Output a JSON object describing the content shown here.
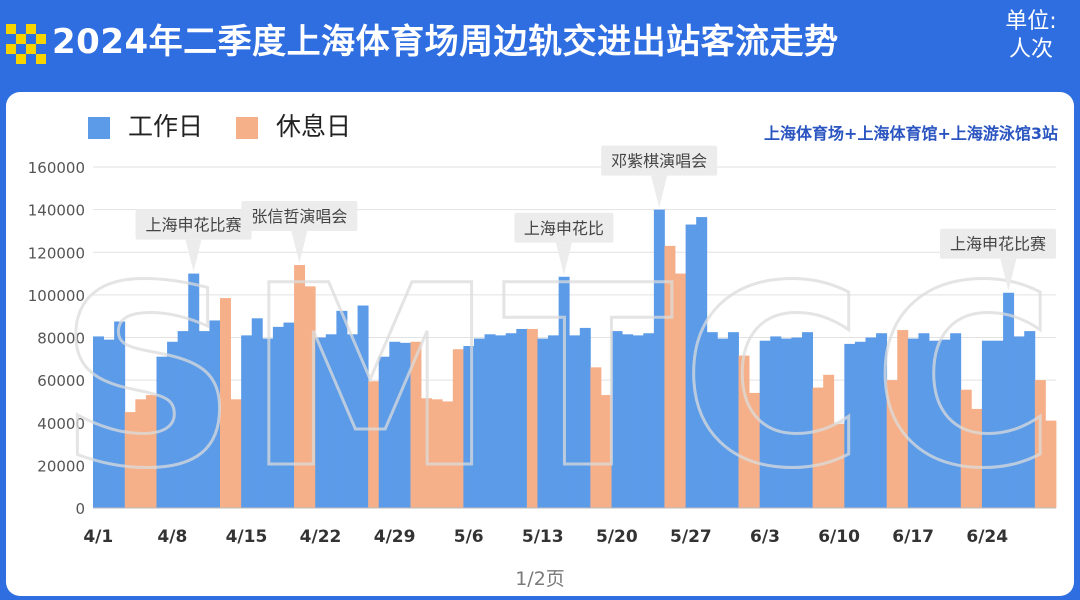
{
  "header": {
    "title": "2024年二季度上海体育场周边轨交进出站客流走势",
    "unit_line1": "单位:",
    "unit_line2": "人次"
  },
  "subtitle": "上海体育场+上海体育馆+上海游泳馆3站",
  "watermark": "SMTCC",
  "pagination": "1/2页",
  "colors": {
    "header_bg": "#2f6ee0",
    "workday": "#5b9be8",
    "holiday": "#f5b08a",
    "logo_yellow": "#f7d300",
    "subtitle": "#2a55c0"
  },
  "chart_data": {
    "type": "bar",
    "title": "2024年二季度上海体育场周边轨交进出站客流走势",
    "xlabel": "",
    "ylabel": "",
    "ylim": [
      0,
      160000
    ],
    "yticks": [
      0,
      20000,
      40000,
      60000,
      80000,
      100000,
      120000,
      140000,
      160000
    ],
    "xtick_labels": [
      "4/1",
      "4/8",
      "4/15",
      "4/22",
      "4/29",
      "5/6",
      "5/13",
      "5/20",
      "5/27",
      "6/3",
      "6/10",
      "6/17",
      "6/24"
    ],
    "start_date": "4/1",
    "series": [
      {
        "name": "工作日",
        "key": "work"
      },
      {
        "name": "休息日",
        "key": "rest"
      }
    ],
    "legend_position": "top-left",
    "grid": true,
    "days": [
      {
        "date": "4/1",
        "value": 80500,
        "type": "work"
      },
      {
        "date": "4/2",
        "value": 79000,
        "type": "work"
      },
      {
        "date": "4/3",
        "value": 87500,
        "type": "work"
      },
      {
        "date": "4/4",
        "value": 45000,
        "type": "rest"
      },
      {
        "date": "4/5",
        "value": 51000,
        "type": "rest"
      },
      {
        "date": "4/6",
        "value": 53000,
        "type": "rest"
      },
      {
        "date": "4/7",
        "value": 71000,
        "type": "work"
      },
      {
        "date": "4/8",
        "value": 78000,
        "type": "work"
      },
      {
        "date": "4/9",
        "value": 83000,
        "type": "work"
      },
      {
        "date": "4/10",
        "value": 110000,
        "type": "work"
      },
      {
        "date": "4/11",
        "value": 83000,
        "type": "work"
      },
      {
        "date": "4/12",
        "value": 88000,
        "type": "work"
      },
      {
        "date": "4/13",
        "value": 98500,
        "type": "rest"
      },
      {
        "date": "4/14",
        "value": 51000,
        "type": "rest"
      },
      {
        "date": "4/15",
        "value": 81000,
        "type": "work"
      },
      {
        "date": "4/16",
        "value": 89000,
        "type": "work"
      },
      {
        "date": "4/17",
        "value": 79500,
        "type": "work"
      },
      {
        "date": "4/18",
        "value": 85000,
        "type": "work"
      },
      {
        "date": "4/19",
        "value": 87000,
        "type": "work"
      },
      {
        "date": "4/20",
        "value": 114000,
        "type": "rest"
      },
      {
        "date": "4/21",
        "value": 104000,
        "type": "rest"
      },
      {
        "date": "4/22",
        "value": 80000,
        "type": "work"
      },
      {
        "date": "4/23",
        "value": 81500,
        "type": "work"
      },
      {
        "date": "4/24",
        "value": 92500,
        "type": "work"
      },
      {
        "date": "4/25",
        "value": 81500,
        "type": "work"
      },
      {
        "date": "4/26",
        "value": 95000,
        "type": "work"
      },
      {
        "date": "4/27",
        "value": 59500,
        "type": "rest"
      },
      {
        "date": "4/28",
        "value": 71000,
        "type": "work"
      },
      {
        "date": "4/29",
        "value": 78000,
        "type": "work"
      },
      {
        "date": "4/30",
        "value": 77500,
        "type": "work"
      },
      {
        "date": "5/1",
        "value": 78000,
        "type": "rest"
      },
      {
        "date": "5/2",
        "value": 51500,
        "type": "rest"
      },
      {
        "date": "5/3",
        "value": 51000,
        "type": "rest"
      },
      {
        "date": "5/4",
        "value": 50000,
        "type": "rest"
      },
      {
        "date": "5/5",
        "value": 74500,
        "type": "rest"
      },
      {
        "date": "5/6",
        "value": 76000,
        "type": "work"
      },
      {
        "date": "5/7",
        "value": 79500,
        "type": "work"
      },
      {
        "date": "5/8",
        "value": 81500,
        "type": "work"
      },
      {
        "date": "5/9",
        "value": 81000,
        "type": "work"
      },
      {
        "date": "5/10",
        "value": 82000,
        "type": "work"
      },
      {
        "date": "5/11",
        "value": 84000,
        "type": "work"
      },
      {
        "date": "5/12",
        "value": 84000,
        "type": "rest"
      },
      {
        "date": "5/13",
        "value": 79500,
        "type": "work"
      },
      {
        "date": "5/14",
        "value": 81000,
        "type": "work"
      },
      {
        "date": "5/15",
        "value": 108500,
        "type": "work"
      },
      {
        "date": "5/16",
        "value": 81000,
        "type": "work"
      },
      {
        "date": "5/17",
        "value": 84500,
        "type": "work"
      },
      {
        "date": "5/18",
        "value": 66000,
        "type": "rest"
      },
      {
        "date": "5/19",
        "value": 53000,
        "type": "rest"
      },
      {
        "date": "5/20",
        "value": 83000,
        "type": "work"
      },
      {
        "date": "5/21",
        "value": 81500,
        "type": "work"
      },
      {
        "date": "5/22",
        "value": 81000,
        "type": "work"
      },
      {
        "date": "5/23",
        "value": 82000,
        "type": "work"
      },
      {
        "date": "5/24",
        "value": 140000,
        "type": "work"
      },
      {
        "date": "5/25",
        "value": 123000,
        "type": "rest"
      },
      {
        "date": "5/26",
        "value": 110000,
        "type": "rest"
      },
      {
        "date": "5/27",
        "value": 133000,
        "type": "work"
      },
      {
        "date": "5/28",
        "value": 136500,
        "type": "work"
      },
      {
        "date": "5/29",
        "value": 82500,
        "type": "work"
      },
      {
        "date": "5/30",
        "value": 79500,
        "type": "work"
      },
      {
        "date": "5/31",
        "value": 82500,
        "type": "work"
      },
      {
        "date": "6/1",
        "value": 71500,
        "type": "rest"
      },
      {
        "date": "6/2",
        "value": 54000,
        "type": "rest"
      },
      {
        "date": "6/3",
        "value": 78500,
        "type": "work"
      },
      {
        "date": "6/4",
        "value": 80500,
        "type": "work"
      },
      {
        "date": "6/5",
        "value": 79500,
        "type": "work"
      },
      {
        "date": "6/6",
        "value": 80000,
        "type": "work"
      },
      {
        "date": "6/7",
        "value": 82500,
        "type": "work"
      },
      {
        "date": "6/8",
        "value": 56500,
        "type": "rest"
      },
      {
        "date": "6/9",
        "value": 62500,
        "type": "rest"
      },
      {
        "date": "6/10",
        "value": 39500,
        "type": "rest"
      },
      {
        "date": "6/11",
        "value": 77000,
        "type": "work"
      },
      {
        "date": "6/12",
        "value": 78000,
        "type": "work"
      },
      {
        "date": "6/13",
        "value": 80000,
        "type": "work"
      },
      {
        "date": "6/14",
        "value": 82000,
        "type": "work"
      },
      {
        "date": "6/15",
        "value": 60000,
        "type": "rest"
      },
      {
        "date": "6/16",
        "value": 83500,
        "type": "rest"
      },
      {
        "date": "6/17",
        "value": 79500,
        "type": "work"
      },
      {
        "date": "6/18",
        "value": 82000,
        "type": "work"
      },
      {
        "date": "6/19",
        "value": 78500,
        "type": "work"
      },
      {
        "date": "6/20",
        "value": 79000,
        "type": "work"
      },
      {
        "date": "6/21",
        "value": 82000,
        "type": "work"
      },
      {
        "date": "6/22",
        "value": 55500,
        "type": "rest"
      },
      {
        "date": "6/23",
        "value": 46500,
        "type": "rest"
      },
      {
        "date": "6/24",
        "value": 78500,
        "type": "work"
      },
      {
        "date": "6/25",
        "value": 78500,
        "type": "work"
      },
      {
        "date": "6/26",
        "value": 101000,
        "type": "work"
      },
      {
        "date": "6/27",
        "value": 80500,
        "type": "work"
      },
      {
        "date": "6/28",
        "value": 83000,
        "type": "work"
      },
      {
        "date": "6/29",
        "value": 60000,
        "type": "rest"
      },
      {
        "date": "6/30",
        "value": 41000,
        "type": "rest"
      }
    ],
    "annotations": [
      {
        "text": "上海申花比赛",
        "date": "4/10"
      },
      {
        "text": "张信哲演唱会",
        "date": "4/20"
      },
      {
        "text": "上海申花比",
        "date": "5/15"
      },
      {
        "text": "邓紫棋演唱会",
        "date": "5/24"
      },
      {
        "text": "上海申花比赛",
        "date": "6/26"
      }
    ]
  }
}
